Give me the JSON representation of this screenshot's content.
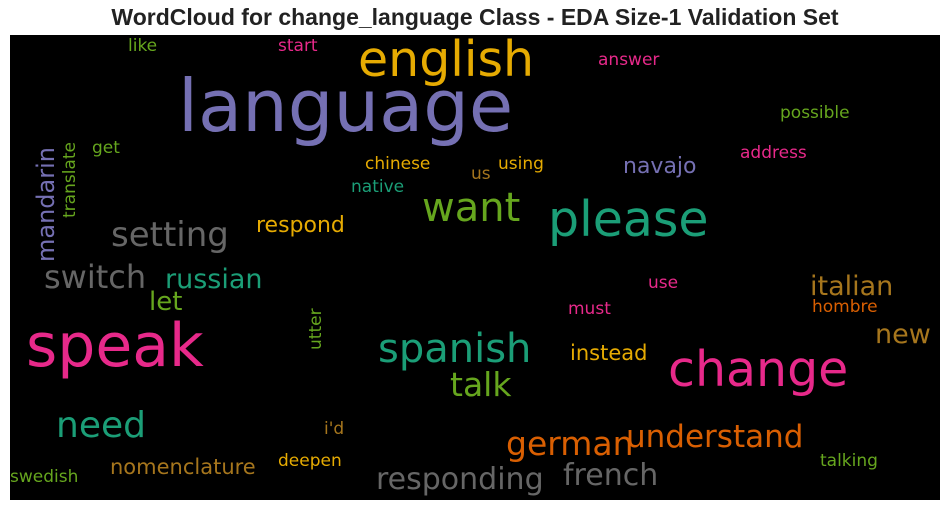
{
  "title": "WordCloud for change_language Class - EDA Size-1 Validation Set",
  "chart_data": {
    "type": "wordcloud",
    "background": "#000000",
    "palette": "Dark2",
    "words": [
      {
        "text": "language",
        "color": "#7570b3"
      },
      {
        "text": "speak",
        "color": "#e7298a"
      },
      {
        "text": "please",
        "color": "#1b9e77"
      },
      {
        "text": "change",
        "color": "#e7298a"
      },
      {
        "text": "english",
        "color": "#e6ab02"
      },
      {
        "text": "want",
        "color": "#66a61e"
      },
      {
        "text": "spanish",
        "color": "#1b9e77"
      },
      {
        "text": "setting",
        "color": "#666666"
      },
      {
        "text": "need",
        "color": "#1b9e77"
      },
      {
        "text": "switch",
        "color": "#666666"
      },
      {
        "text": "talk",
        "color": "#66a61e"
      },
      {
        "text": "german",
        "color": "#d95f02"
      },
      {
        "text": "understand",
        "color": "#d95f02"
      },
      {
        "text": "responding",
        "color": "#666666"
      },
      {
        "text": "french",
        "color": "#666666"
      },
      {
        "text": "russian",
        "color": "#1b9e77"
      },
      {
        "text": "italian",
        "color": "#a6761d"
      },
      {
        "text": "mandarin",
        "color": "#7570b3"
      },
      {
        "text": "let",
        "color": "#66a61e"
      },
      {
        "text": "new",
        "color": "#a6761d"
      },
      {
        "text": "respond",
        "color": "#e6ab02"
      },
      {
        "text": "navajo",
        "color": "#7570b3"
      },
      {
        "text": "instead",
        "color": "#e6ab02"
      },
      {
        "text": "nomenclature",
        "color": "#a6761d"
      },
      {
        "text": "deepen",
        "color": "#e6ab02"
      },
      {
        "text": "swedish",
        "color": "#66a61e"
      },
      {
        "text": "talking",
        "color": "#66a61e"
      },
      {
        "text": "hombre",
        "color": "#d95f02"
      },
      {
        "text": "must",
        "color": "#e7298a"
      },
      {
        "text": "use",
        "color": "#e7298a"
      },
      {
        "text": "i'd",
        "color": "#a6761d"
      },
      {
        "text": "utter",
        "color": "#66a61e"
      },
      {
        "text": "translate",
        "color": "#66a61e"
      },
      {
        "text": "get",
        "color": "#66a61e"
      },
      {
        "text": "like",
        "color": "#66a61e"
      },
      {
        "text": "start",
        "color": "#e7298a"
      },
      {
        "text": "answer",
        "color": "#e7298a"
      },
      {
        "text": "possible",
        "color": "#66a61e"
      },
      {
        "text": "address",
        "color": "#e7298a"
      },
      {
        "text": "chinese",
        "color": "#e6ab02"
      },
      {
        "text": "using",
        "color": "#e6ab02"
      },
      {
        "text": "us",
        "color": "#a6761d"
      },
      {
        "text": "native",
        "color": "#1b9e77"
      }
    ]
  }
}
